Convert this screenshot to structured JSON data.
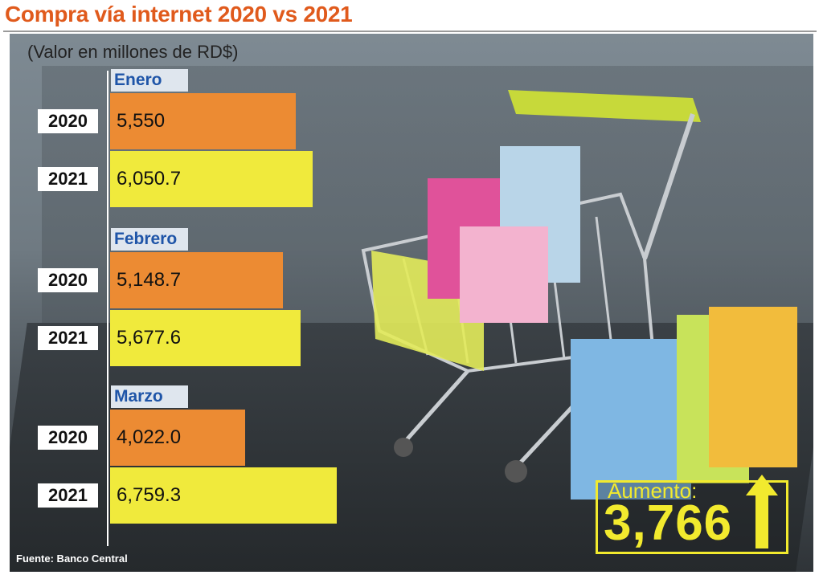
{
  "title": "Compra vía internet 2020 vs 2021",
  "subtitle": "(Valor en millones de RD$)",
  "source": "Fuente: Banco Central",
  "summary": {
    "label": "Aumento:",
    "value": "3,766"
  },
  "colors": {
    "bar_2020": "#ec8b33",
    "bar_2021": "#f0ea3c",
    "title": "#e05a1c",
    "month": "#1f55a8",
    "accent": "#f2ea2e"
  },
  "chart_data": {
    "type": "bar",
    "orientation": "horizontal",
    "groups": [
      {
        "month": "Enero",
        "rows": [
          {
            "year": "2020",
            "value": 5550,
            "label": "5,550"
          },
          {
            "year": "2021",
            "value": 6050.7,
            "label": "6,050.7"
          }
        ]
      },
      {
        "month": "Febrero",
        "rows": [
          {
            "year": "2020",
            "value": 5148.7,
            "label": "5,148.7"
          },
          {
            "year": "2021",
            "value": 5677.6,
            "label": "5,677.6"
          }
        ]
      },
      {
        "month": "Marzo",
        "rows": [
          {
            "year": "2020",
            "value": 4022.0,
            "label": "4,022.0"
          },
          {
            "year": "2021",
            "value": 6759.3,
            "label": "6,759.3"
          }
        ]
      }
    ]
  }
}
